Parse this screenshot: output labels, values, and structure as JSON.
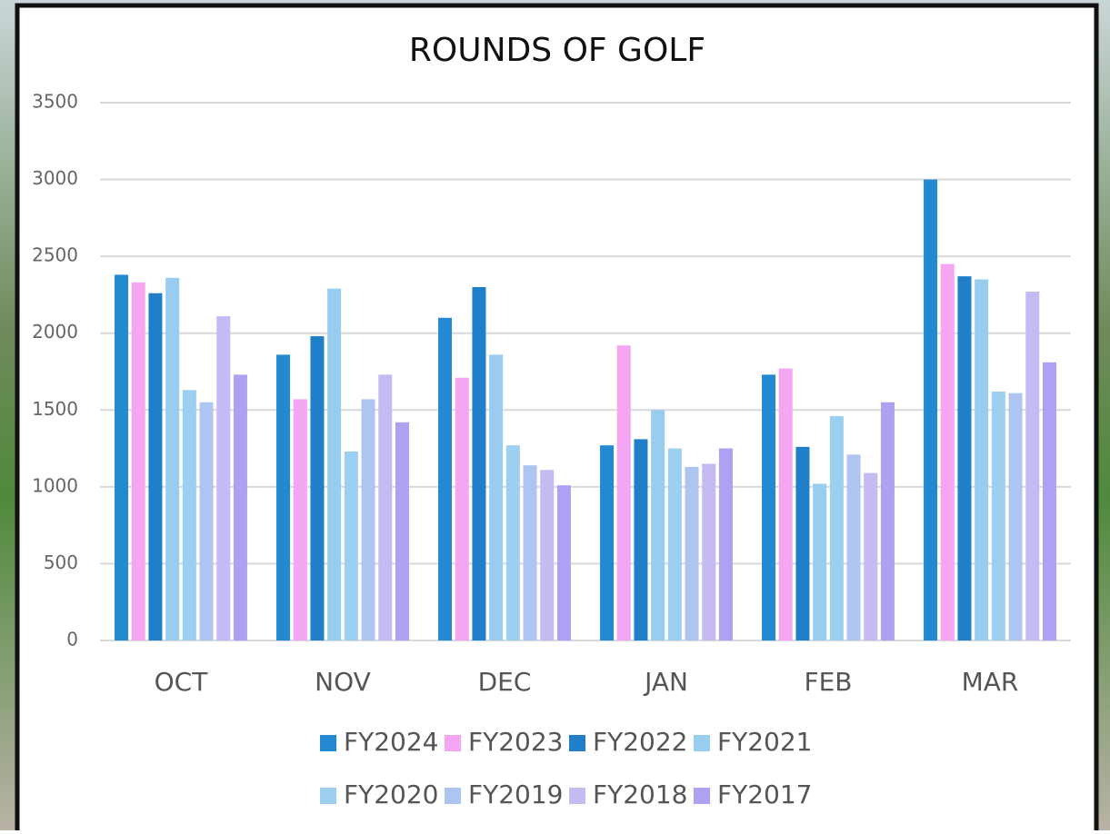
{
  "chart_data": {
    "type": "bar",
    "title": "ROUNDS OF GOLF",
    "categories": [
      "OCT",
      "NOV",
      "DEC",
      "JAN",
      "FEB",
      "MAR"
    ],
    "series": [
      {
        "name": "FY2024",
        "color": "#2389d0",
        "values": [
          2380,
          1860,
          2100,
          1270,
          1730,
          3000
        ]
      },
      {
        "name": "FY2023",
        "color": "#f4a6f2",
        "values": [
          2330,
          1570,
          1710,
          1920,
          1770,
          2450
        ]
      },
      {
        "name": "FY2022",
        "color": "#1f80c9",
        "values": [
          2260,
          1980,
          2300,
          1310,
          1260,
          2370
        ]
      },
      {
        "name": "FY2021",
        "color": "#98cdef",
        "values": [
          2360,
          2290,
          1860,
          1500,
          1020,
          2350
        ]
      },
      {
        "name": "FY2020",
        "color": "#9ccff0",
        "values": [
          1630,
          1230,
          1270,
          1250,
          1460,
          1620
        ]
      },
      {
        "name": "FY2019",
        "color": "#aec5f1",
        "values": [
          1550,
          1570,
          1140,
          1130,
          1210,
          1610
        ]
      },
      {
        "name": "FY2018",
        "color": "#c5baf1",
        "values": [
          2110,
          1730,
          1110,
          1150,
          1090,
          2270
        ]
      },
      {
        "name": "FY2017",
        "color": "#ada2f2",
        "values": [
          1730,
          1420,
          1010,
          1250,
          1550,
          1810
        ]
      }
    ],
    "ylim": [
      0,
      3500
    ],
    "yticks": [
      0,
      500,
      1000,
      1500,
      2000,
      2500,
      3000,
      3500
    ],
    "grid": true
  }
}
